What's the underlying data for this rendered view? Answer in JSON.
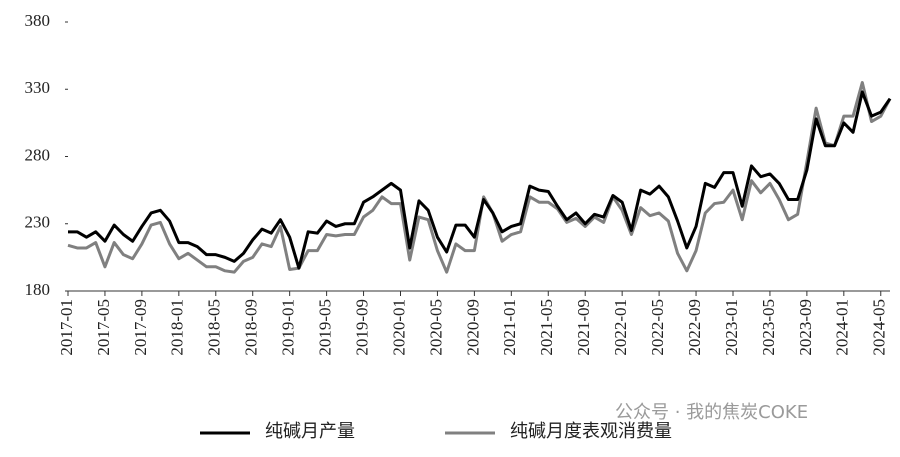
{
  "chart_data": {
    "type": "line",
    "categories": [
      "2017-01",
      null,
      null,
      null,
      "2017-05",
      null,
      null,
      null,
      "2017-09",
      null,
      null,
      null,
      "2018-01",
      null,
      null,
      null,
      "2018-05",
      null,
      null,
      null,
      "2018-09",
      null,
      null,
      null,
      "2019-01",
      null,
      null,
      null,
      "2019-05",
      null,
      null,
      null,
      "2019-09",
      null,
      null,
      null,
      "2020-01",
      null,
      null,
      null,
      "2020-05",
      null,
      null,
      null,
      "2020-09",
      null,
      null,
      null,
      "2021-01",
      null,
      null,
      null,
      "2021-05",
      null,
      null,
      null,
      "2021-09",
      null,
      null,
      null,
      "2022-01",
      null,
      null,
      null,
      "2022-05",
      null,
      null,
      null,
      "2022-09",
      null,
      null,
      null,
      "2023-01",
      null,
      null,
      null,
      "2023-05",
      null,
      null,
      null,
      "2023-09",
      null,
      null,
      null,
      "2024-01",
      null,
      null,
      null,
      "2024-05",
      null
    ],
    "series": [
      {
        "name": "纯碱月产量",
        "color": "#000000",
        "values": [
          224,
          224,
          220,
          224,
          217,
          229,
          222,
          217,
          228,
          238,
          240,
          232,
          216,
          216,
          213,
          207,
          207,
          205,
          202,
          208,
          218,
          226,
          223,
          233,
          220,
          197,
          224,
          223,
          232,
          228,
          230,
          230,
          246,
          250,
          255,
          260,
          255,
          212,
          247,
          240,
          220,
          209,
          229,
          229,
          220,
          248,
          238,
          224,
          228,
          230,
          258,
          255,
          254,
          243,
          233,
          238,
          230,
          237,
          235,
          251,
          246,
          225,
          255,
          252,
          258,
          250,
          232,
          212,
          228,
          260,
          257,
          268,
          268,
          243,
          273,
          265,
          267,
          260,
          248,
          248,
          270,
          308,
          288,
          288,
          305,
          298,
          328,
          310,
          313,
          323
        ]
      },
      {
        "name": "纯碱月度表观消费量",
        "color": "#808080",
        "values": [
          214,
          212,
          212,
          216,
          198,
          216,
          207,
          204,
          215,
          229,
          231,
          215,
          204,
          208,
          203,
          198,
          198,
          195,
          194,
          202,
          205,
          215,
          213,
          228,
          196,
          197,
          210,
          210,
          222,
          221,
          222,
          222,
          235,
          240,
          250,
          245,
          245,
          203,
          235,
          233,
          210,
          194,
          215,
          210,
          210,
          250,
          238,
          217,
          222,
          224,
          250,
          246,
          246,
          241,
          231,
          234,
          228,
          235,
          231,
          250,
          240,
          222,
          242,
          236,
          238,
          232,
          208,
          195,
          210,
          238,
          245,
          246,
          255,
          233,
          262,
          253,
          260,
          248,
          233,
          237,
          276,
          316,
          290,
          288,
          310,
          310,
          335,
          306,
          310,
          323
        ]
      }
    ],
    "ylim": [
      180,
      380
    ],
    "yticks": [
      180,
      230,
      280,
      330,
      380
    ],
    "watermark": "公众号 · 我的焦炭COKE"
  }
}
